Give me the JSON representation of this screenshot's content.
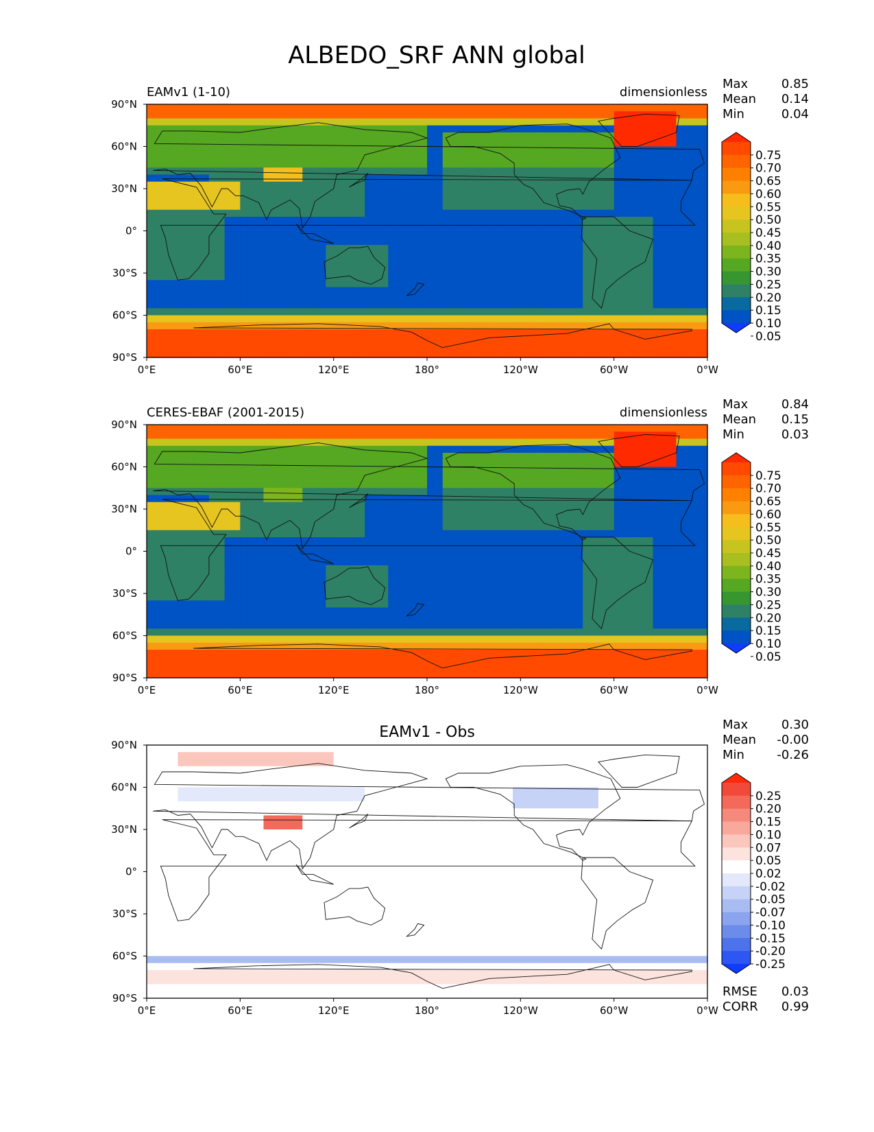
{
  "figure": {
    "title": "ALBEDO_SRF ANN global"
  },
  "chart_data": [
    {
      "type": "heatmap",
      "panel": "model",
      "left_title": "EAMv1 (1-10)",
      "center_title": "",
      "right_title": "dimensionless",
      "stats": {
        "labels": [
          "Max",
          "Mean",
          "Min"
        ],
        "values": [
          "0.85",
          "0.14",
          "0.04"
        ]
      },
      "x_ticks": [
        "0°E",
        "60°E",
        "120°E",
        "180°",
        "120°W",
        "60°W",
        "0°W"
      ],
      "y_ticks": [
        "90°N",
        "60°N",
        "30°N",
        "0°",
        "30°S",
        "60°S",
        "90°S"
      ],
      "xlim": [
        0,
        360
      ],
      "ylim": [
        -90,
        90
      ],
      "colorbar": {
        "levels": [
          "0.75",
          "0.70",
          "0.65",
          "0.60",
          "0.55",
          "0.50",
          "0.45",
          "0.40",
          "0.35",
          "0.30",
          "0.25",
          "0.20",
          "0.15",
          "0.10",
          "0.05"
        ],
        "colors": [
          "#ff2a00",
          "#ff4a00",
          "#ff6400",
          "#ff8000",
          "#f99a12",
          "#f5be1c",
          "#e6c520",
          "#c8c41f",
          "#a8bf1f",
          "#7db51e",
          "#56a722",
          "#37962f",
          "#2f8166",
          "#086a9e",
          "#0053c4",
          "#0f3cff"
        ]
      }
    },
    {
      "type": "heatmap",
      "panel": "observations",
      "left_title": "CERES-EBAF (2001-2015)",
      "center_title": "",
      "right_title": "dimensionless",
      "stats": {
        "labels": [
          "Max",
          "Mean",
          "Min"
        ],
        "values": [
          "0.84",
          "0.15",
          "0.03"
        ]
      },
      "x_ticks": [
        "0°E",
        "60°E",
        "120°E",
        "180°",
        "120°W",
        "60°W",
        "0°W"
      ],
      "y_ticks": [
        "90°N",
        "60°N",
        "30°N",
        "0°",
        "30°S",
        "60°S",
        "90°S"
      ],
      "xlim": [
        0,
        360
      ],
      "ylim": [
        -90,
        90
      ],
      "colorbar": {
        "levels": [
          "0.75",
          "0.70",
          "0.65",
          "0.60",
          "0.55",
          "0.50",
          "0.45",
          "0.40",
          "0.35",
          "0.30",
          "0.25",
          "0.20",
          "0.15",
          "0.10",
          "0.05"
        ],
        "colors": [
          "#ff2a00",
          "#ff4a00",
          "#ff6400",
          "#ff8000",
          "#f99a12",
          "#f5be1c",
          "#e6c520",
          "#c8c41f",
          "#a8bf1f",
          "#7db51e",
          "#56a722",
          "#37962f",
          "#2f8166",
          "#086a9e",
          "#0053c4",
          "#0f3cff"
        ]
      }
    },
    {
      "type": "heatmap",
      "panel": "difference",
      "left_title": "",
      "center_title": "EAMv1 - Obs",
      "right_title": "",
      "stats": {
        "labels": [
          "Max",
          "Mean",
          "Min"
        ],
        "values": [
          "0.30",
          "-0.00",
          "-0.26"
        ]
      },
      "bottom_stats": {
        "labels": [
          "RMSE",
          "CORR"
        ],
        "values": [
          "0.03",
          "0.99"
        ]
      },
      "x_ticks": [
        "0°E",
        "60°E",
        "120°E",
        "180°",
        "120°W",
        "60°W",
        "0°W"
      ],
      "y_ticks": [
        "90°N",
        "60°N",
        "30°N",
        "0°",
        "30°S",
        "60°S",
        "90°S"
      ],
      "xlim": [
        0,
        360
      ],
      "ylim": [
        -90,
        90
      ],
      "colorbar": {
        "levels": [
          "0.25",
          "0.20",
          "0.15",
          "0.10",
          "0.07",
          "0.05",
          "0.02",
          "-0.02",
          "-0.05",
          "-0.07",
          "-0.10",
          "-0.15",
          "-0.20",
          "-0.25"
        ],
        "colors": [
          "#ff2a0a",
          "#f24a3a",
          "#f36a5a",
          "#f58a7c",
          "#f8a99c",
          "#fbc6bc",
          "#fde3de",
          "#ffffff",
          "#e3e9fb",
          "#c6d3f7",
          "#a8bcf2",
          "#8aa4ed",
          "#6c8cea",
          "#4c72ec",
          "#2d56f3",
          "#0f3cff"
        ]
      }
    }
  ]
}
